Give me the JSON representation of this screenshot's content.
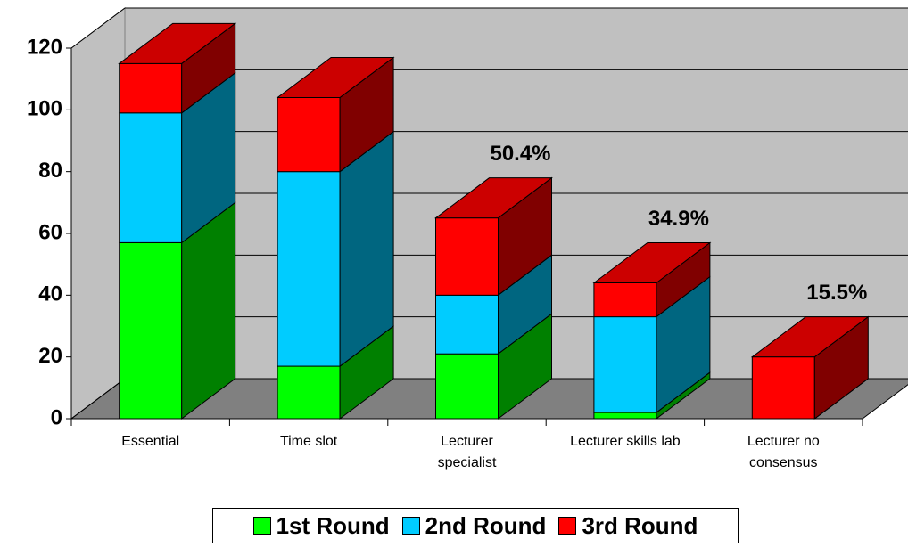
{
  "chart_data": {
    "type": "bar3d_stacked",
    "categories": [
      "Essential",
      "Time slot",
      "Lecturer specialist",
      "Lecturer skills lab",
      "Lecturer no consensus"
    ],
    "series": [
      {
        "name": "1st Round",
        "color": "#00ff00",
        "values": [
          57,
          17,
          21,
          2,
          0
        ]
      },
      {
        "name": "2nd Round",
        "color": "#00ccff",
        "values": [
          42,
          63,
          19,
          31,
          0
        ]
      },
      {
        "name": "3rd Round",
        "color": "#ff0000",
        "values": [
          16,
          24,
          25,
          11,
          20
        ]
      }
    ],
    "annotations": [
      {
        "category": 2,
        "text": "50.4%"
      },
      {
        "category": 3,
        "text": "34.9%"
      },
      {
        "category": 4,
        "text": "15.5%"
      }
    ],
    "ylim": [
      0,
      120
    ],
    "yticks": [
      0,
      20,
      40,
      60,
      80,
      100,
      120
    ],
    "grid": true,
    "legend": "bottom"
  }
}
